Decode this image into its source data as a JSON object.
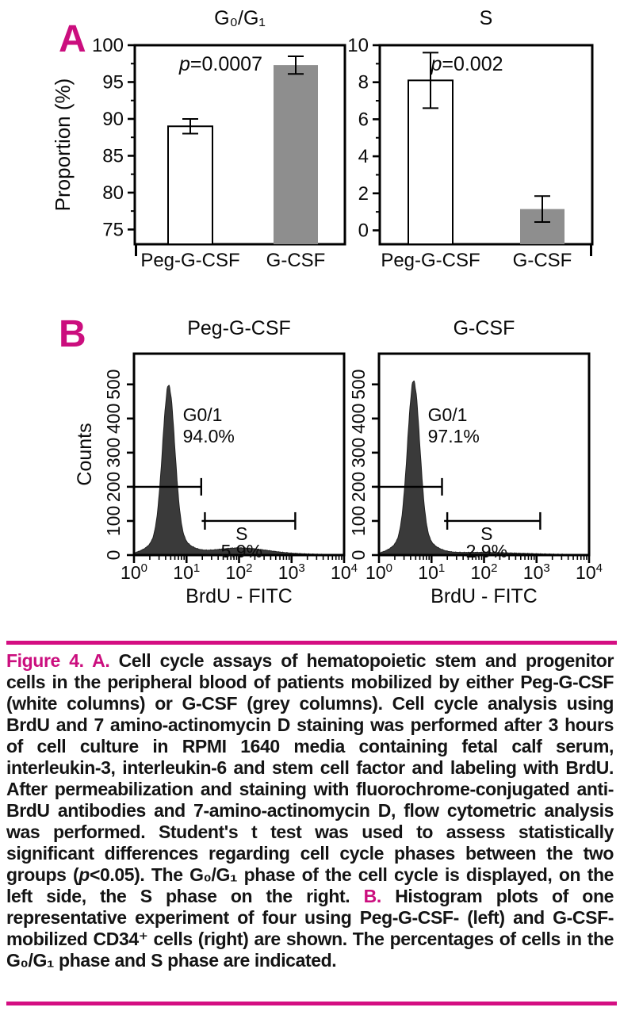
{
  "figure_labels": {
    "panel_a": "A",
    "panel_b": "B"
  },
  "colors": {
    "magenta_text": "#cb0e7e",
    "magenta_rule": "#d40e82",
    "bar_white": "#ffffff",
    "bar_grey": "#8e8e8e",
    "hist_fill": "#3a3a3a",
    "axis": "#000000"
  },
  "chart_data": [
    {
      "id": "a1",
      "type": "bar",
      "title": "G₀/G₁",
      "ylabel": "Proportion (%)",
      "categories": [
        "Peg-G-CSF",
        "G-CSF"
      ],
      "values": [
        89,
        97.3
      ],
      "errors": [
        1.0,
        1.2
      ],
      "bar_styles": [
        "white",
        "grey"
      ],
      "p_label": "p=0.0007",
      "ylim": [
        73,
        100
      ],
      "yticks": [
        75,
        80,
        85,
        90,
        95,
        100
      ],
      "yminor": [
        77.5,
        82.5,
        87.5,
        92.5,
        97.5
      ]
    },
    {
      "id": "a2",
      "type": "bar",
      "title": "S",
      "ylabel": "",
      "categories": [
        "Peg-G-CSF",
        "G-CSF"
      ],
      "values": [
        8.1,
        1.15
      ],
      "errors": [
        1.5,
        0.7
      ],
      "bar_styles": [
        "white",
        "grey"
      ],
      "p_label": "p=0.002",
      "ylim": [
        -0.75,
        10
      ],
      "yticks": [
        0,
        2,
        4,
        6,
        8,
        10
      ],
      "yminor": [
        1,
        3,
        5,
        7,
        9
      ]
    },
    {
      "id": "b1",
      "type": "histogram",
      "title": "Peg-G-CSF",
      "xlabel": "BrdU - FITC",
      "ylabel": "Counts",
      "yticks": [
        0,
        100,
        200,
        300,
        400,
        500
      ],
      "ymax": 590,
      "x_exponents": [
        "0",
        "1",
        "2",
        "3",
        "4"
      ],
      "regions": [
        {
          "name": "G0/1",
          "pct": "94.0%",
          "gate_y": 200,
          "gate_from_log": 0,
          "gate_to_log": 1.28
        },
        {
          "name": "S",
          "pct": "5.9%",
          "gate_y": 100,
          "gate_from_log": 1.35,
          "gate_to_log": 3.07
        }
      ],
      "curve": {
        "peak_center_log": 0.66,
        "peak_sigma": 0.115,
        "peak_height": 435,
        "base_sigma": 0.29,
        "base_height": 58,
        "bump_center_log": 2.02,
        "bump_sigma": 0.5,
        "bump_height": 16,
        "floor": 5
      }
    },
    {
      "id": "b2",
      "type": "histogram",
      "title": "G-CSF",
      "xlabel": "BrdU - FITC",
      "ylabel": "",
      "yticks": [
        0,
        100,
        200,
        300,
        400,
        500
      ],
      "ymax": 590,
      "x_exponents": [
        "0",
        "1",
        "2",
        "3",
        "4"
      ],
      "regions": [
        {
          "name": "G0/1",
          "pct": "97.1%",
          "gate_y": 200,
          "gate_from_log": 0,
          "gate_to_log": 1.2
        },
        {
          "name": "S",
          "pct": "2.9%",
          "gate_y": 100,
          "gate_from_log": 1.3,
          "gate_to_log": 3.07
        }
      ],
      "curve": {
        "peak_center_log": 0.66,
        "peak_sigma": 0.115,
        "peak_height": 448,
        "base_sigma": 0.29,
        "base_height": 58,
        "bump_center_log": 1.9,
        "bump_sigma": 0.7,
        "bump_height": 4,
        "floor": 4
      }
    }
  ],
  "caption": {
    "segments": [
      {
        "text": "Figure 4. A.",
        "style": "magenta"
      },
      {
        "text": " Cell cycle assays of hematopoietic stem and progenitor cells in the peripheral blood of patients mobilized by either Peg-G-CSF (white columns) or G-CSF (grey columns). Cell cycle analysis using BrdU and 7 amino-actinomycin D staining was performed after 3 hours of cell culture in RPMI 1640 media containing fetal calf serum, interleukin-3, interleukin-6 and stem cell factor and labeling with BrdU. After permeabilization and staining with fluorochrome-conjugated anti-BrdU antibodies and 7-amino-actinomycin D, flow cytometric analysis was performed. Student's t test was used to assess statistically significant differences regarding cell cycle phases between the two groups (",
        "style": "body"
      },
      {
        "text": "p",
        "style": "italic"
      },
      {
        "text": "<0.05). The G₀/G₁ phase of the cell cycle is displayed, on the left side, the S phase on the right. ",
        "style": "body"
      },
      {
        "text": "B.",
        "style": "magenta"
      },
      {
        "text": " Histogram plots of one representative experiment of four using Peg-G-CSF- (left) and G-CSF-mobilized CD34⁺ cells (right) are shown. The percentages of cells in the G₀/G₁ phase and S phase are indicated.",
        "style": "body"
      }
    ]
  }
}
